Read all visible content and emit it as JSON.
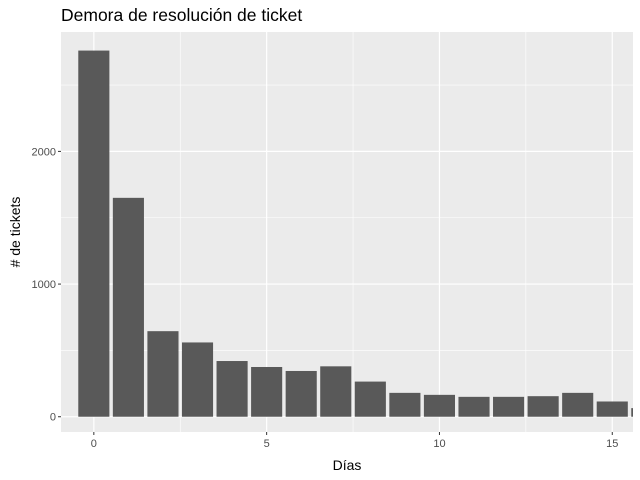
{
  "chart_data": {
    "type": "bar",
    "title": "Demora de resolución de ticket",
    "xlabel": "Días",
    "ylabel": "# de tickets",
    "x": [
      0,
      1,
      2,
      3,
      4,
      5,
      6,
      7,
      8,
      9,
      10,
      11,
      12,
      13,
      14,
      15,
      16
    ],
    "values": [
      2760,
      1650,
      645,
      560,
      420,
      375,
      345,
      380,
      265,
      180,
      165,
      150,
      150,
      155,
      180,
      115,
      65
    ],
    "xlim": [
      -0.95,
      15.6
    ],
    "ylim": [
      -115,
      2900
    ],
    "x_ticks": [
      0,
      5,
      10,
      15
    ],
    "y_ticks": [
      0,
      1000,
      2000
    ],
    "bar_color": "#595959",
    "panel_color": "#ebebeb",
    "grid_color": "#ffffff",
    "grid": true
  }
}
